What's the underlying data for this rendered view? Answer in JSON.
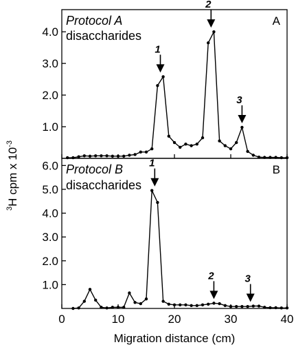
{
  "chart_data": [
    {
      "panel": "A",
      "type": "line",
      "protocol_label": "Protocol A",
      "sub_label": "disaccharides",
      "xlim": [
        0,
        40
      ],
      "ylim": [
        0,
        4.7
      ],
      "yticks": [
        "1.0",
        "2.0",
        "3.0",
        "4.0"
      ],
      "ytick_values": [
        1,
        2,
        3,
        4
      ],
      "x": [
        1,
        2,
        3,
        4,
        5,
        6,
        7,
        8,
        9,
        10,
        11,
        12,
        13,
        14,
        15,
        16,
        17,
        18,
        19,
        20,
        21,
        22,
        23,
        24,
        25,
        26,
        27,
        28,
        29,
        30,
        31,
        32,
        33,
        34,
        35,
        36,
        37,
        38,
        39,
        40
      ],
      "values": [
        0.02,
        0.02,
        0.05,
        0.08,
        0.07,
        0.08,
        0.08,
        0.08,
        0.07,
        0.07,
        0.07,
        0.1,
        0.12,
        0.2,
        0.2,
        0.3,
        2.3,
        2.58,
        0.7,
        0.5,
        0.35,
        0.45,
        0.4,
        0.45,
        0.65,
        3.65,
        4.0,
        0.55,
        0.4,
        0.3,
        0.5,
        0.98,
        0.22,
        0.1,
        0.04,
        0.03,
        0.03,
        0.03,
        0.02,
        0.02
      ],
      "peaks": [
        {
          "label": "1",
          "x": 17.5,
          "y": 2.58
        },
        {
          "label": "2",
          "x": 26.5,
          "y": 4.0
        },
        {
          "label": "3",
          "x": 32,
          "y": 0.98
        }
      ]
    },
    {
      "panel": "B",
      "type": "line",
      "protocol_label": "Protocol B",
      "sub_label": "disaccharides",
      "xlim": [
        0,
        40
      ],
      "ylim": [
        0,
        6.3
      ],
      "yticks": [
        "1.0",
        "2.0",
        "3.0",
        "4.0",
        "5.0",
        "6.0"
      ],
      "ytick_values": [
        1,
        2,
        3,
        4,
        5,
        6
      ],
      "x": [
        2,
        3,
        4,
        5,
        6,
        7,
        8,
        9,
        10,
        11,
        12,
        13,
        14,
        15,
        16,
        17,
        18,
        19,
        20,
        21,
        22,
        23,
        24,
        25,
        26,
        27,
        28,
        29,
        30,
        31,
        32,
        33,
        34,
        35,
        36,
        37,
        38,
        39,
        40
      ],
      "values": [
        0.0,
        0.02,
        0.3,
        0.8,
        0.35,
        0.05,
        0.02,
        0.05,
        0.05,
        0.05,
        0.65,
        0.25,
        0.2,
        0.4,
        4.95,
        4.45,
        0.3,
        0.18,
        0.15,
        0.15,
        0.15,
        0.12,
        0.12,
        0.15,
        0.18,
        0.22,
        0.2,
        0.12,
        0.08,
        0.08,
        0.08,
        0.08,
        0.1,
        0.1,
        0.05,
        0.03,
        0.03,
        0.02,
        0.02
      ],
      "peaks": [
        {
          "label": "1",
          "x": 16.5,
          "y": 4.95
        },
        {
          "label": "2",
          "x": 27,
          "y": 0.22
        },
        {
          "label": "3",
          "x": 33.5,
          "y": 0.1
        }
      ]
    }
  ],
  "xticks": [
    "0",
    "10",
    "20",
    "30",
    "40"
  ],
  "xtick_values": [
    0,
    10,
    20,
    30,
    40
  ],
  "xlabel": "Migration distance (cm)",
  "ylabel_super": "3",
  "ylabel_main": "H cpm x 10",
  "ylabel_exp": "-3"
}
